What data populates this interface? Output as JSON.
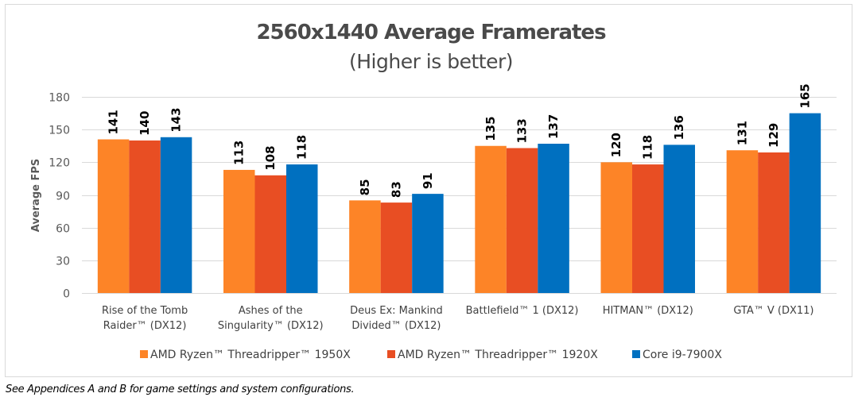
{
  "chart_data": {
    "type": "bar",
    "title": "2560x1440 Average Framerates",
    "subtitle": "(Higher is better)",
    "xlabel": "",
    "ylabel": "Average FPS",
    "ylim": [
      0,
      180
    ],
    "yticks": [
      0,
      30,
      60,
      90,
      120,
      150,
      180
    ],
    "grid": true,
    "legend_position": "bottom",
    "data_labels": true,
    "categories": [
      [
        "Rise of the Tomb",
        "Raider™ (DX12)"
      ],
      [
        "Ashes of the",
        "Singularity™ (DX12)"
      ],
      [
        "Deus Ex: Mankind",
        "Divided™ (DX12)"
      ],
      [
        "Battlefield™ 1 (DX12)"
      ],
      [
        "HITMAN™ (DX12)"
      ],
      [
        "GTA™ V (DX11)"
      ]
    ],
    "series": [
      {
        "name": "AMD Ryzen™ Threadripper™ 1950X",
        "color": "#fd8427",
        "values": [
          141,
          113,
          85,
          135,
          120,
          131
        ]
      },
      {
        "name": "AMD Ryzen™ Threadripper™ 1920X",
        "color": "#e84e23",
        "values": [
          140,
          108,
          83,
          133,
          118,
          129
        ]
      },
      {
        "name": "Core i9-7900X",
        "color": "#0070c0",
        "values": [
          143,
          118,
          91,
          137,
          136,
          165
        ]
      }
    ]
  },
  "footnote": "See Appendices A and B for game settings and system configurations."
}
